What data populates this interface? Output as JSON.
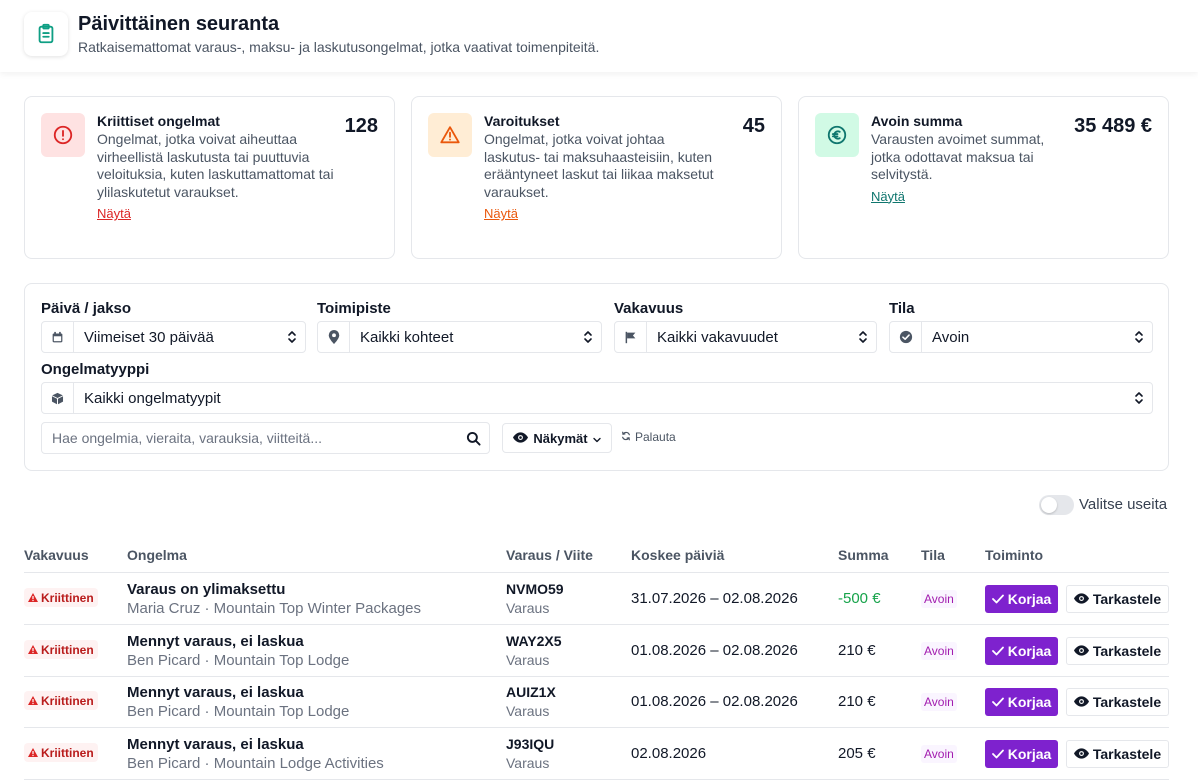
{
  "header": {
    "title": "Päivittäinen seuranta",
    "subtitle": "Ratkaisemattomat varaus-, maksu- ja laskutusongelmat, jotka vaativat toimenpiteitä.",
    "icon": "clipboard-icon"
  },
  "cards": [
    {
      "title": "Kriittiset ongelmat",
      "description": "Ongelmat, jotka voivat aiheuttaa virheellistä laskutusta tai puuttuvia veloituksia, kuten laskuttamattomat tai ylilaskutetut varaukset.",
      "link": "Näytä",
      "value": "128",
      "accent": "#dc2626",
      "icon": "alert-circle-icon"
    },
    {
      "title": "Varoitukset",
      "description": "Ongelmat, jotka voivat johtaa laskutus- tai maksuhaasteisiin, kuten erääntyneet laskut tai liikaa maksetut varaukset.",
      "link": "Näytä",
      "value": "45",
      "accent": "#ea580c",
      "icon": "warning-triangle-icon"
    },
    {
      "title": "Avoin summa",
      "description": "Varausten avoimet summat, jotka odottavat maksua tai selvitystä.",
      "link": "Näytä",
      "value": "35 489 €",
      "accent": "#0f766e",
      "icon": "euro-icon"
    }
  ],
  "filters": {
    "date": {
      "label": "Päivä / jakso",
      "value": "Viimeiset 30 päivää",
      "icon": "calendar-icon"
    },
    "location": {
      "label": "Toimipiste",
      "value": "Kaikki kohteet",
      "icon": "map-pin-icon"
    },
    "severity": {
      "label": "Vakavuus",
      "value": "Kaikki vakavuudet",
      "icon": "flag-icon"
    },
    "status": {
      "label": "Tila",
      "value": "Avoin",
      "icon": "check-circle-icon"
    },
    "type": {
      "label": "Ongelmatyyppi",
      "value": "Kaikki ongelmatyypit",
      "icon": "box-icon"
    },
    "search_placeholder": "Hae ongelmia, vieraita, varauksia, viitteitä...",
    "views_label": "Näkymät",
    "reset_label": "Palauta"
  },
  "multi_select": {
    "label": "Valitse useita",
    "enabled": false
  },
  "table": {
    "columns": [
      "Vakavuus",
      "Ongelma",
      "Varaus / Viite",
      "Koskee päiviä",
      "Summa",
      "Tila",
      "Toiminto"
    ],
    "rows": [
      {
        "severity": "Kriittinen",
        "title": "Varaus on ylimaksettu",
        "subtitle": "Maria Cruz · Mountain Top Winter Packages",
        "ref": "NVMO59",
        "ref_type": "Varaus",
        "dates": "31.07.2026 – 02.08.2026",
        "amount": "-500 €",
        "status": "Avoin"
      },
      {
        "severity": "Kriittinen",
        "title": "Mennyt varaus, ei laskua",
        "subtitle": "Ben Picard · Mountain Top Lodge",
        "ref": "WAY2X5",
        "ref_type": "Varaus",
        "dates": "01.08.2026 – 02.08.2026",
        "amount": "210 €",
        "status": "Avoin"
      },
      {
        "severity": "Kriittinen",
        "title": "Mennyt varaus, ei laskua",
        "subtitle": "Ben Picard · Mountain Top Lodge",
        "ref": "AUIZ1X",
        "ref_type": "Varaus",
        "dates": "01.08.2026 – 02.08.2026",
        "amount": "210 €",
        "status": "Avoin"
      },
      {
        "severity": "Kriittinen",
        "title": "Mennyt varaus, ei laskua",
        "subtitle": "Ben Picard · Mountain Lodge Activities",
        "ref": "J93IQU",
        "ref_type": "Varaus",
        "dates": "02.08.2026",
        "amount": "205 €",
        "status": "Avoin"
      }
    ],
    "fix_label": "Korjaa",
    "view_label": "Tarkastele"
  }
}
